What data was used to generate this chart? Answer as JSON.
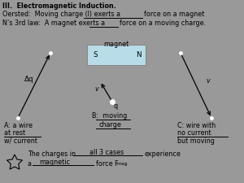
{
  "bg_color": "#999999",
  "title_line": "III.  Electromagnetic Induction.",
  "oersted_pre": "Oersted:  Moving charge (I) exerts a",
  "oersted_post": "force on a magnet",
  "newtons_pre": "N’s 3rd law:  A magnet exerts a",
  "newtons_post": "force on a moving charge.",
  "magnet_label": "magnet",
  "magnet_S": "S",
  "magnet_N": "N",
  "magnet_color": "#b8dde8",
  "label_A_line1": "A: a wire",
  "label_A_line2": "at rest",
  "label_A_line3": "w/ current",
  "label_B": "B:  moving",
  "label_B2": "charge",
  "label_C_line1": "C: wire with",
  "label_C_line2": "no current",
  "label_C_line3": "but moving",
  "deltaq": "Δq",
  "v_label": "v",
  "q_label": "q",
  "bottom_pre1": "The charges in",
  "bottom_fill1": "all 3 cases",
  "bottom_post1": "experience",
  "bottom_pre2": "a",
  "bottom_fill2": "magnetic",
  "bottom_post2": "force F",
  "bottom_sub": "mag",
  "bottom_end": "."
}
